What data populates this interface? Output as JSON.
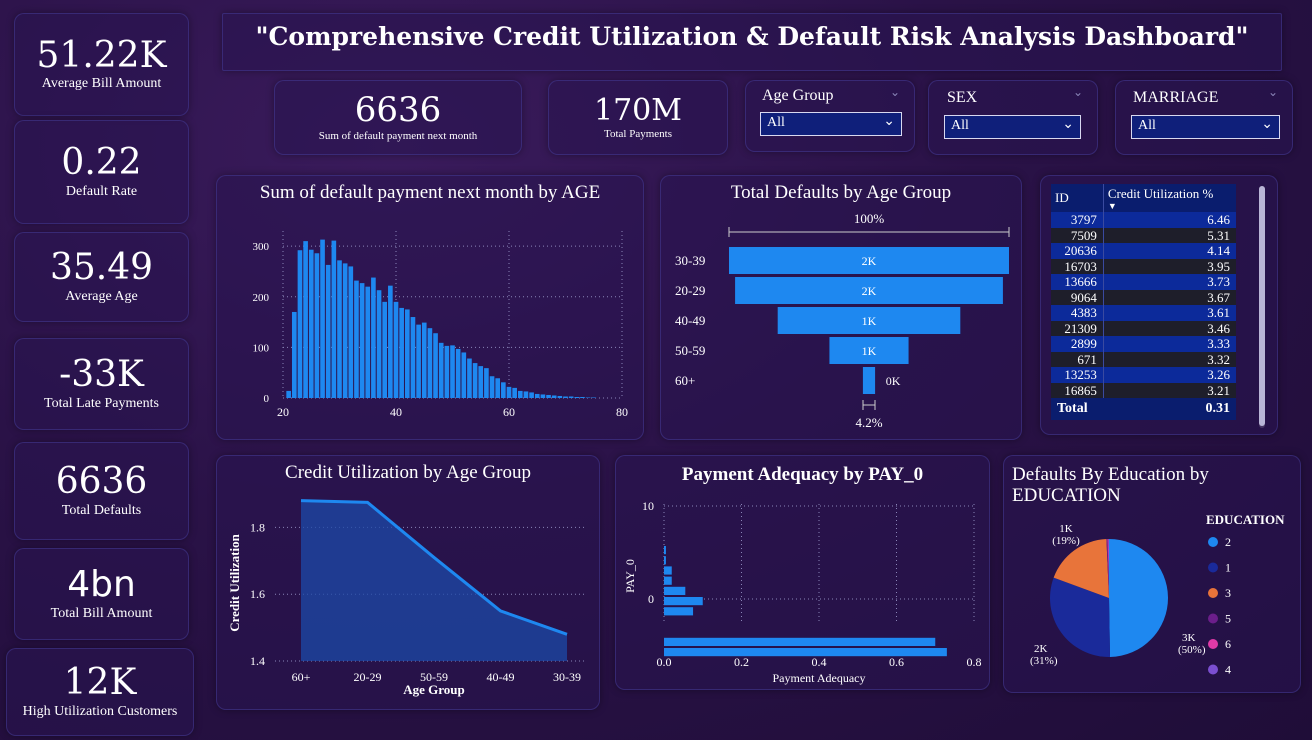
{
  "title": "\"Comprehensive Credit Utilization & Default Risk Analysis Dashboard\"",
  "kpis_left": [
    {
      "value": "51.22K",
      "label": "Average Bill Amount"
    },
    {
      "value": "0.22",
      "label": "Default Rate"
    },
    {
      "value": "35.49",
      "label": "Average Age"
    },
    {
      "value": "-33K",
      "label": "Total Late Payments"
    },
    {
      "value": "6636",
      "label": "Total Defaults"
    },
    {
      "value": "4bn",
      "label": "Total Bill Amount"
    },
    {
      "value": "12K",
      "label": "High Utilization Customers"
    }
  ],
  "kpis_top": [
    {
      "value": "6636",
      "label": "Sum of default payment next month"
    },
    {
      "value": "170M",
      "label": "Total Payments"
    }
  ],
  "slicers": [
    {
      "label": "Age Group",
      "value": "All"
    },
    {
      "label": "SEX",
      "value": "All"
    },
    {
      "label": "MARRIAGE",
      "value": "All"
    }
  ],
  "colors": {
    "bar": "#1e88f0",
    "pie_2": "#1e88f0",
    "pie_1": "#1a2a9a",
    "pie_3": "#e8743a",
    "pie_5": "#6b1e8a",
    "pie_6": "#e03aa8",
    "pie_4": "#7b4fd0"
  },
  "table": {
    "headers": [
      "ID",
      "Credit Utilization %"
    ],
    "rows": [
      [
        "3797",
        "6.46"
      ],
      [
        "7509",
        "5.31"
      ],
      [
        "20636",
        "4.14"
      ],
      [
        "16703",
        "3.95"
      ],
      [
        "13666",
        "3.73"
      ],
      [
        "9064",
        "3.67"
      ],
      [
        "4383",
        "3.61"
      ],
      [
        "21309",
        "3.46"
      ],
      [
        "2899",
        "3.33"
      ],
      [
        "671",
        "3.32"
      ],
      [
        "13253",
        "3.26"
      ],
      [
        "16865",
        "3.21"
      ]
    ],
    "total_label": "Total",
    "total_value": "0.31"
  },
  "chart_data": [
    {
      "type": "bar",
      "title": "Sum of default payment next month by AGE",
      "x_ticks": [
        "20",
        "40",
        "60",
        "80"
      ],
      "y_ticks": [
        "0",
        "100",
        "200",
        "300"
      ],
      "xlim": [
        20,
        80
      ],
      "ylim": [
        0,
        330
      ],
      "x": [
        21,
        22,
        23,
        24,
        25,
        26,
        27,
        28,
        29,
        30,
        31,
        32,
        33,
        34,
        35,
        36,
        37,
        38,
        39,
        40,
        41,
        42,
        43,
        44,
        45,
        46,
        47,
        48,
        49,
        50,
        51,
        52,
        53,
        54,
        55,
        56,
        57,
        58,
        59,
        60,
        61,
        62,
        63,
        64,
        65,
        66,
        67,
        68,
        69,
        70,
        71,
        72,
        73,
        74,
        75
      ],
      "values": [
        14,
        170,
        292,
        310,
        293,
        286,
        313,
        263,
        311,
        272,
        266,
        260,
        232,
        227,
        220,
        238,
        213,
        190,
        222,
        190,
        178,
        175,
        160,
        145,
        149,
        138,
        128,
        109,
        103,
        104,
        97,
        90,
        78,
        69,
        63,
        59,
        43,
        39,
        31,
        22,
        20,
        14,
        13,
        11,
        8,
        7,
        6,
        5,
        4,
        3,
        3,
        2,
        2,
        1,
        1
      ]
    },
    {
      "type": "bar",
      "title": "Total Defaults by Age Group",
      "top_label": "100%",
      "bottom_label": "4.2%",
      "categories": [
        "30-39",
        "20-29",
        "40-49",
        "50-59",
        "60+"
      ],
      "values": [
        2300,
        2200,
        1500,
        650,
        100
      ],
      "labels": [
        "2K",
        "2K",
        "1K",
        "1K",
        "0K"
      ]
    },
    {
      "type": "area",
      "title": "Credit Utilization by Age Group",
      "xlabel": "Age Group",
      "ylabel": "Credit Utilization",
      "categories": [
        "60+",
        "20-29",
        "50-59",
        "40-49",
        "30-39"
      ],
      "values": [
        1.88,
        1.875,
        1.71,
        1.55,
        1.48
      ],
      "y_ticks": [
        "1.4",
        "1.6",
        "1.8"
      ],
      "ylim": [
        1.4,
        1.9
      ]
    },
    {
      "type": "bar",
      "title": "Payment Adequacy by PAY_0",
      "xlabel": "Payment Adequacy",
      "ylabel": "PAY_0",
      "x_ticks": [
        "0.0",
        "0.2",
        "0.4",
        "0.6",
        "0.8"
      ],
      "y_ticks": [
        "10",
        "0"
      ],
      "xlim": [
        0,
        0.8
      ],
      "pay0": [
        8,
        7,
        6,
        5,
        4,
        3,
        2,
        1,
        0,
        -1,
        -2
      ],
      "values": [
        0.005,
        0.005,
        0.02,
        0.02,
        0.055,
        0.1,
        0.075,
        0.0,
        0.0,
        0.7,
        0.73
      ]
    },
    {
      "type": "pie",
      "title": "Defaults By Education by EDUCATION",
      "legend_title": "EDUCATION",
      "legend": [
        "2",
        "1",
        "3",
        "5",
        "6",
        "4"
      ],
      "values": [
        3300,
        2050,
        1240,
        20,
        15,
        11
      ],
      "slice_labels": [
        {
          "value": "3K",
          "pct": "(50%)"
        },
        {
          "value": "2K",
          "pct": "(31%)"
        },
        {
          "value": "1K",
          "pct": "(19%)"
        }
      ]
    }
  ]
}
